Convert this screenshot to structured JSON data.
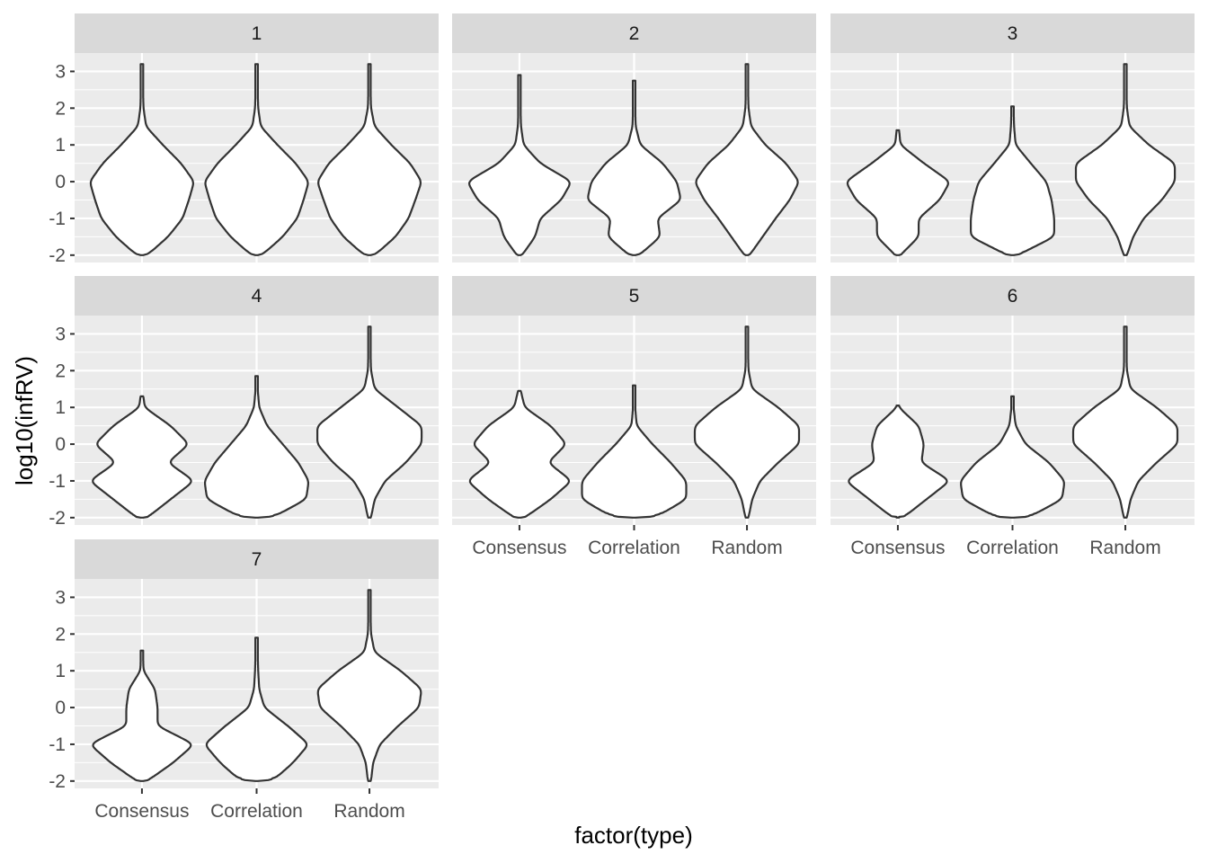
{
  "chart_data": {
    "type": "violin",
    "facet_by": "facet",
    "xlabel": "factor(type)",
    "ylabel": "log10(infRV)",
    "categories": [
      "Consensus",
      "Correlation",
      "Random"
    ],
    "y_ticks": [
      -2,
      -1,
      0,
      1,
      2,
      3
    ],
    "ylim": [
      -2.2,
      3.5
    ],
    "grid": true,
    "y_grid_points": [
      -2,
      -1.5,
      -1,
      -0.5,
      0,
      0.5,
      1,
      1.5,
      2,
      2.5,
      3
    ],
    "density_grid": [
      0,
      0.03,
      0.1,
      0.25,
      0.5,
      0.85,
      1.3,
      2.0,
      3.0,
      4.0,
      5.0
    ],
    "panels": [
      {
        "facet": "1",
        "violins": [
          {
            "category": "Consensus",
            "ymin": -2.0,
            "ymax": 3.2,
            "widths": [
              0.1,
              0.5,
              0.78,
              0.9,
              1.0,
              0.75,
              0.4,
              0.08,
              0.03,
              0.02,
              0.02
            ]
          },
          {
            "category": "Correlation",
            "ymin": -2.0,
            "ymax": 3.2,
            "widths": [
              0.1,
              0.5,
              0.78,
              0.9,
              1.0,
              0.75,
              0.4,
              0.08,
              0.03,
              0.02,
              0.02
            ]
          },
          {
            "category": "Random",
            "ymin": -2.0,
            "ymax": 3.2,
            "widths": [
              0.1,
              0.5,
              0.75,
              0.88,
              1.0,
              0.78,
              0.42,
              0.1,
              0.03,
              0.02,
              0.02
            ]
          }
        ]
      },
      {
        "facet": "2",
        "violins": [
          {
            "category": "Consensus",
            "ymin": -2.0,
            "ymax": 2.9,
            "widths": [
              0.05,
              0.3,
              0.4,
              0.8,
              1.0,
              0.4,
              0.08,
              0.03,
              0.02,
              0.02,
              0.02
            ]
          },
          {
            "category": "Correlation",
            "ymin": -2.0,
            "ymax": 2.75,
            "widths": [
              0.1,
              0.5,
              0.45,
              0.9,
              0.82,
              0.55,
              0.12,
              0.03,
              0.02,
              0.02,
              0.02
            ]
          },
          {
            "category": "Random",
            "ymin": -2.0,
            "ymax": 3.2,
            "widths": [
              0.05,
              0.3,
              0.55,
              0.82,
              1.0,
              0.75,
              0.35,
              0.08,
              0.03,
              0.02,
              0.02
            ]
          }
        ]
      },
      {
        "facet": "3",
        "violins": [
          {
            "category": "Consensus",
            "ymin": -2.0,
            "ymax": 1.4,
            "widths": [
              0.05,
              0.4,
              0.4,
              0.8,
              1.0,
              0.5,
              0.05,
              0.02,
              0.02,
              0.02,
              0.02
            ]
          },
          {
            "category": "Correlation",
            "ymin": -2.0,
            "ymax": 2.05,
            "widths": [
              0.1,
              0.8,
              0.8,
              0.75,
              0.65,
              0.35,
              0.06,
              0.03,
              0.02,
              0.02,
              0.02
            ]
          },
          {
            "category": "Random",
            "ymin": -2.0,
            "ymax": 3.2,
            "widths": [
              0.03,
              0.15,
              0.35,
              0.7,
              0.95,
              0.95,
              0.45,
              0.08,
              0.03,
              0.02,
              0.02
            ]
          }
        ]
      },
      {
        "facet": "4",
        "violins": [
          {
            "category": "Consensus",
            "ymin": -2.0,
            "ymax": 1.3,
            "widths": [
              0.1,
              0.55,
              1.0,
              0.5,
              0.9,
              0.55,
              0.05,
              0.02,
              0.02,
              0.02,
              0.02
            ]
          },
          {
            "category": "Correlation",
            "ymin": -2.0,
            "ymax": 1.85,
            "widths": [
              0.3,
              0.95,
              1.0,
              0.8,
              0.5,
              0.2,
              0.05,
              0.02,
              0.02,
              0.02,
              0.02
            ]
          },
          {
            "category": "Random",
            "ymin": -2.0,
            "ymax": 3.2,
            "widths": [
              0.03,
              0.1,
              0.3,
              0.7,
              1.0,
              1.0,
              0.55,
              0.1,
              0.03,
              0.02,
              0.02
            ]
          }
        ]
      },
      {
        "facet": "5",
        "violins": [
          {
            "category": "Consensus",
            "ymin": -2.0,
            "ymax": 1.45,
            "widths": [
              0.1,
              0.6,
              1.0,
              0.55,
              0.9,
              0.6,
              0.1,
              0.02,
              0.02,
              0.02,
              0.02
            ]
          },
          {
            "category": "Correlation",
            "ymin": -2.0,
            "ymax": 1.6,
            "widths": [
              0.4,
              1.0,
              1.0,
              0.7,
              0.35,
              0.05,
              0.02,
              0.02,
              0.02,
              0.02,
              0.02
            ]
          },
          {
            "category": "Random",
            "ymin": -2.0,
            "ymax": 3.2,
            "widths": [
              0.03,
              0.1,
              0.25,
              0.6,
              1.0,
              1.0,
              0.6,
              0.1,
              0.03,
              0.02,
              0.02
            ]
          }
        ]
      },
      {
        "facet": "6",
        "violins": [
          {
            "category": "Consensus",
            "ymin": -2.0,
            "ymax": 1.05,
            "widths": [
              0.1,
              0.55,
              1.0,
              0.45,
              0.5,
              0.4,
              0.02,
              0.02,
              0.02,
              0.02,
              0.02
            ]
          },
          {
            "category": "Correlation",
            "ymin": -2.0,
            "ymax": 1.3,
            "widths": [
              0.3,
              0.95,
              1.0,
              0.7,
              0.25,
              0.06,
              0.02,
              0.02,
              0.02,
              0.02,
              0.02
            ]
          },
          {
            "category": "Random",
            "ymin": -2.0,
            "ymax": 3.2,
            "widths": [
              0.03,
              0.1,
              0.25,
              0.6,
              1.0,
              1.0,
              0.6,
              0.1,
              0.03,
              0.02,
              0.02
            ]
          }
        ]
      },
      {
        "facet": "7",
        "violins": [
          {
            "category": "Consensus",
            "ymin": -2.0,
            "ymax": 1.55,
            "widths": [
              0.1,
              0.6,
              1.0,
              0.3,
              0.3,
              0.25,
              0.03,
              0.02,
              0.02,
              0.02,
              0.02
            ]
          },
          {
            "category": "Correlation",
            "ymin": -2.0,
            "ymax": 1.9,
            "widths": [
              0.3,
              0.7,
              1.0,
              0.6,
              0.15,
              0.05,
              0.03,
              0.02,
              0.02,
              0.02,
              0.02
            ]
          },
          {
            "category": "Random",
            "ymin": -2.0,
            "ymax": 3.2,
            "widths": [
              0.03,
              0.07,
              0.2,
              0.55,
              0.95,
              1.0,
              0.6,
              0.1,
              0.03,
              0.02,
              0.02
            ]
          }
        ]
      }
    ]
  }
}
